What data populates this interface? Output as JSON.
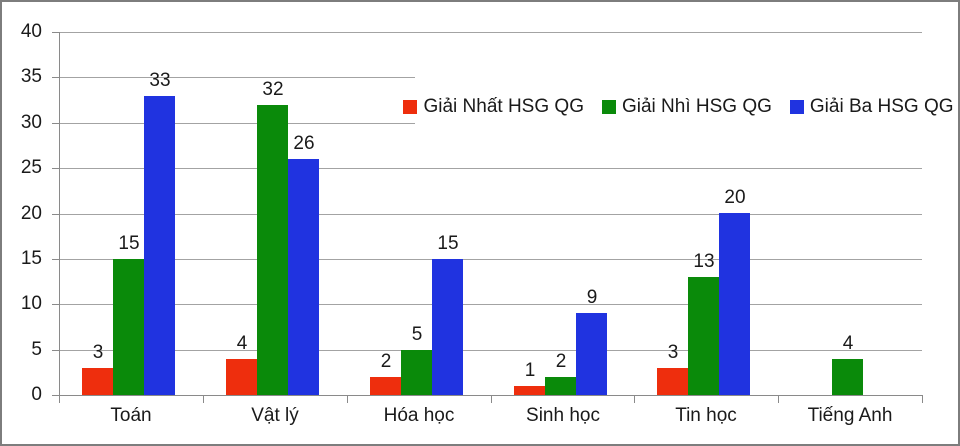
{
  "chart_data": {
    "type": "bar",
    "title": "",
    "categories": [
      "Toán",
      "Vật lý",
      "Hóa học",
      "Sinh học",
      "Tin học",
      "Tiếng Anh"
    ],
    "series": [
      {
        "name": "Giải Nhất HSG QG",
        "color": "#ee2e0d",
        "values": [
          3,
          4,
          2,
          1,
          3,
          0
        ]
      },
      {
        "name": "Giải Nhì HSG QG",
        "color": "#0a8a0a",
        "values": [
          15,
          32,
          5,
          2,
          13,
          4
        ]
      },
      {
        "name": "Giải Ba HSG QG",
        "color": "#2033e0",
        "values": [
          33,
          26,
          15,
          9,
          20,
          0
        ]
      }
    ],
    "y_axis": {
      "min": 0,
      "max": 40,
      "step": 5,
      "ticks": [
        "0",
        "5",
        "10",
        "15",
        "20",
        "25",
        "30",
        "35",
        "40"
      ]
    },
    "grid": true,
    "data_labels": true,
    "legend_position": "inside-top-right"
  },
  "style": {
    "grid_color": "#a3a3a3",
    "axis_color": "#8a8a8a",
    "text_color": "#1a1a1a",
    "background": "#ffffff",
    "border_color": "#7d7d7d"
  }
}
